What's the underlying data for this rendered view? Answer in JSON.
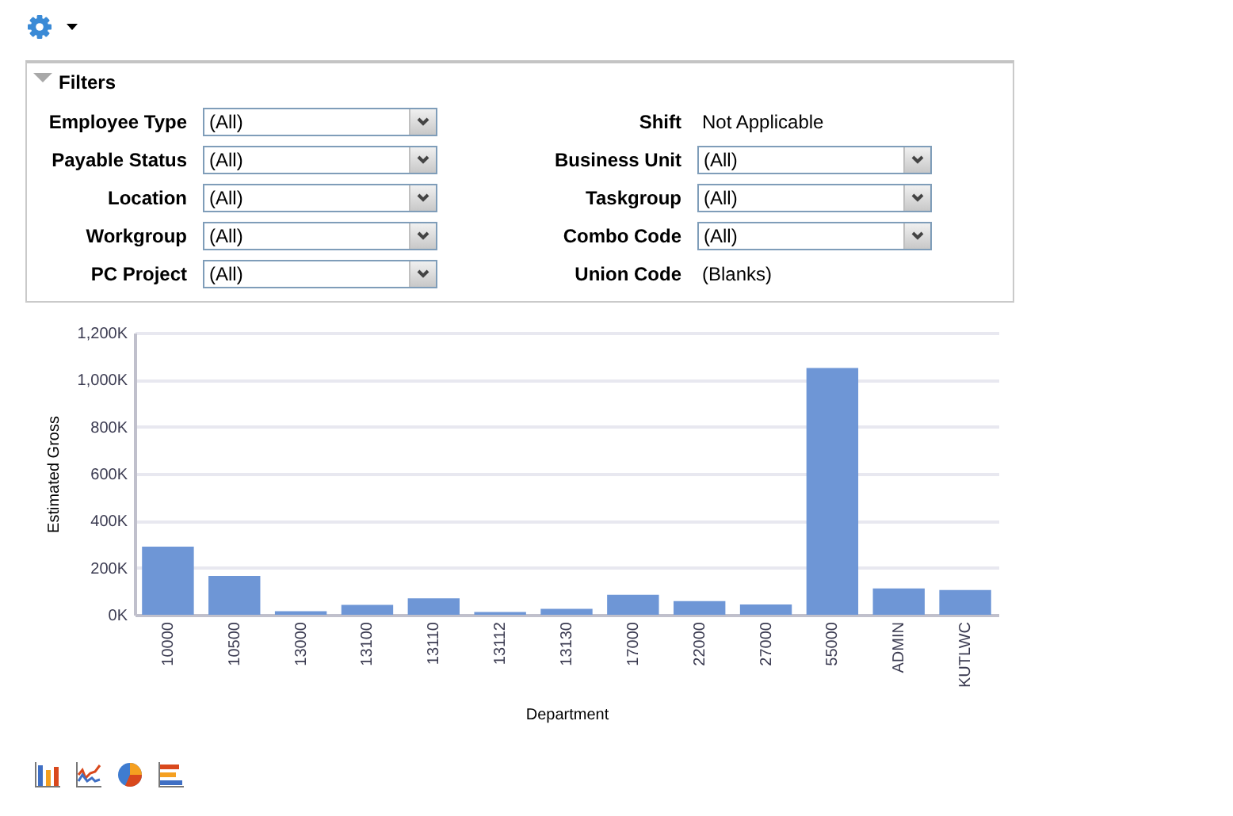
{
  "chart_data": [
    {
      "type": "other",
      "title": "Filters",
      "annotations": [
        "Employee Type",
        "(All)",
        "Shift",
        "Not Applicable",
        "Payable Status",
        "(All)",
        "Business Unit",
        "(All)",
        "Location",
        "(All)",
        "Taskgroup",
        "(All)",
        "Workgroup",
        "(All)",
        "Combo Code",
        "(All)",
        "PC Project",
        "(All)",
        "Union Code",
        "(Blanks)"
      ]
    },
    {
      "type": "bar",
      "xlabel": "Department",
      "ylabel": "Estimated Gross",
      "categories": [
        "10000",
        "10500",
        "13000",
        "13100",
        "13110",
        "13112",
        "13130",
        "17000",
        "22000",
        "27000",
        "55000",
        "ADMIN",
        "KUTLWC"
      ],
      "values": [
        290000,
        165000,
        15000,
        42000,
        70000,
        12000,
        25000,
        85000,
        58000,
        44000,
        1050000,
        112000,
        105000
      ],
      "color": "#6e96d6",
      "ylim": [
        0,
        1200000
      ],
      "yticks": [
        {
          "value": 0,
          "label": "0K"
        },
        {
          "value": 200000,
          "label": "200K"
        },
        {
          "value": 400000,
          "label": "400K"
        },
        {
          "value": 600000,
          "label": "600K"
        },
        {
          "value": 800000,
          "label": "800K"
        },
        {
          "value": 1000000,
          "label": "1,000K"
        },
        {
          "value": 1200000,
          "label": "1,200K"
        }
      ],
      "grid": "y"
    }
  ]
}
